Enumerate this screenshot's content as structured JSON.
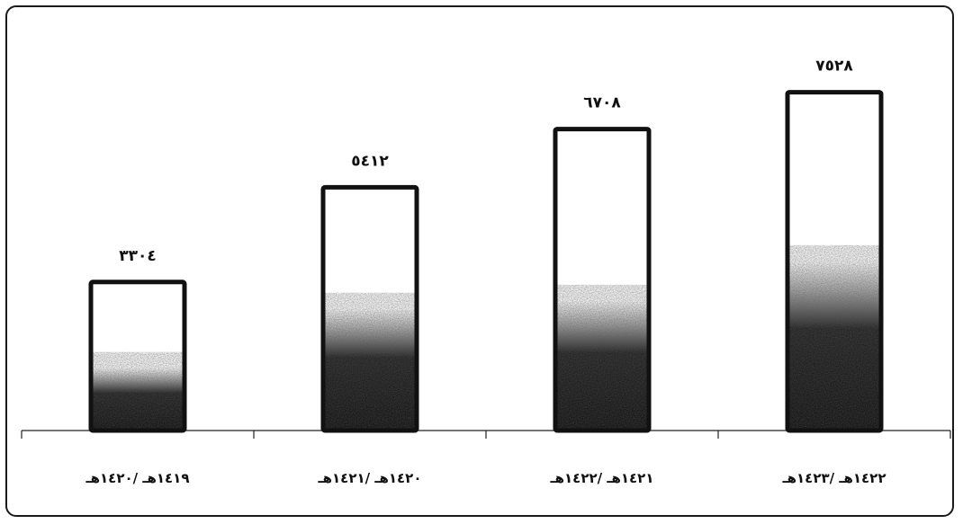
{
  "chart_data": {
    "type": "bar",
    "title": "",
    "xlabel": "",
    "ylabel": "",
    "categories": [
      "١٤١٩هـ /١٤٢٠هـ",
      "١٤٢٠هـ /١٤٢١هـ",
      "١٤٢١هـ /١٤٢٢هـ",
      "١٤٢٢هـ /١٤٢٣هـ"
    ],
    "values": [
      3304,
      5412,
      6708,
      7528
    ],
    "value_labels": [
      "٣٣٠٤",
      "٥٤١٢",
      "٦٧٠٨",
      "٧٥٢٨"
    ],
    "ylim": [
      0,
      8000
    ],
    "grid": false,
    "legend": "none",
    "colors": {
      "bar_outline": "#111111",
      "bar_fill": "#ffffff",
      "texture": "#1a1a1a"
    }
  }
}
